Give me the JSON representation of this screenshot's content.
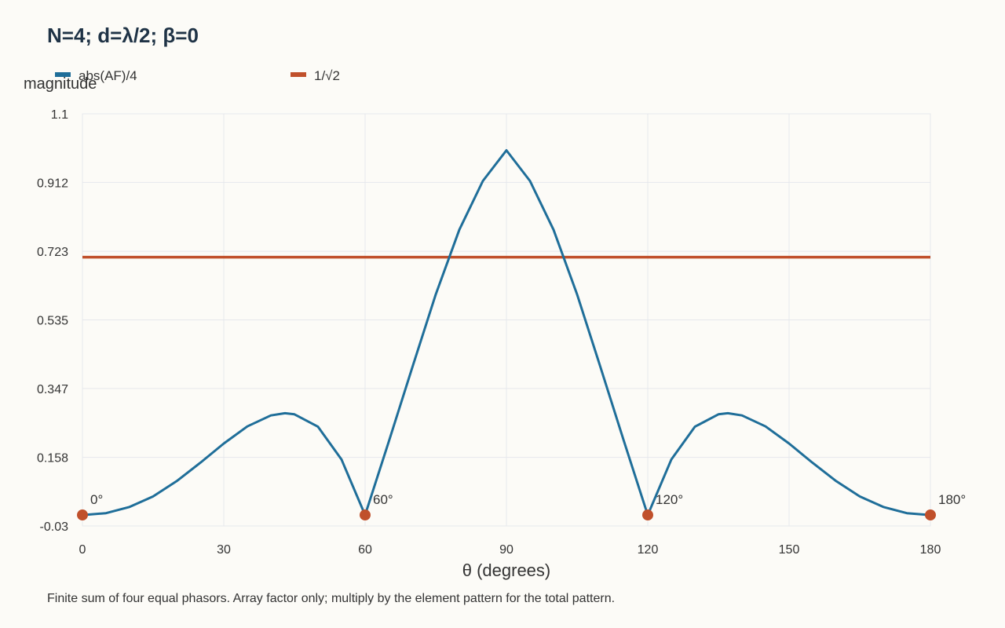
{
  "chart_data": {
    "type": "line",
    "title": "N=4; d=λ/2; β=0",
    "xlabel": "θ (degrees)",
    "ylabel": "magnitude",
    "xlim": [
      0,
      180
    ],
    "ylim": [
      -0.03,
      1.1
    ],
    "x_ticks": [
      "0",
      "30",
      "60",
      "90",
      "120",
      "150",
      "180"
    ],
    "y_ticks": [
      "-0.03",
      "0.158",
      "0.347",
      "0.535",
      "0.723",
      "0.912",
      "1.1"
    ],
    "grid": true,
    "legend_position": "top",
    "series": [
      {
        "name": "abs(AF)/4",
        "color": "#1f6e99",
        "x": [
          0,
          5,
          10,
          15,
          20,
          25,
          30,
          35,
          40,
          43,
          45,
          50,
          55,
          60,
          65,
          70,
          75,
          80,
          85,
          90,
          95,
          100,
          105,
          110,
          115,
          120,
          125,
          130,
          135,
          137,
          140,
          145,
          150,
          155,
          160,
          165,
          170,
          175,
          180
        ],
        "y": [
          0.0,
          0.005,
          0.022,
          0.051,
          0.093,
          0.143,
          0.196,
          0.243,
          0.273,
          0.279,
          0.276,
          0.242,
          0.152,
          0.0,
          0.2,
          0.404,
          0.605,
          0.782,
          0.916,
          1.0,
          0.916,
          0.782,
          0.605,
          0.404,
          0.2,
          0.0,
          0.152,
          0.242,
          0.276,
          0.279,
          0.273,
          0.243,
          0.196,
          0.143,
          0.093,
          0.051,
          0.022,
          0.005,
          0.0
        ]
      },
      {
        "name": "1/√2",
        "color": "#c0502b",
        "x": [
          0,
          180
        ],
        "y": [
          0.707,
          0.707
        ]
      }
    ],
    "markers": {
      "color": "#c0502b",
      "points": [
        {
          "x": 0,
          "y": 0,
          "label": "0°"
        },
        {
          "x": 60,
          "y": 0,
          "label": "60°"
        },
        {
          "x": 120,
          "y": 0,
          "label": "120°"
        },
        {
          "x": 180,
          "y": 0,
          "label": "180°"
        }
      ]
    },
    "note": "Finite sum of four equal phasors. Array factor only; multiply by the element pattern for the total pattern."
  }
}
